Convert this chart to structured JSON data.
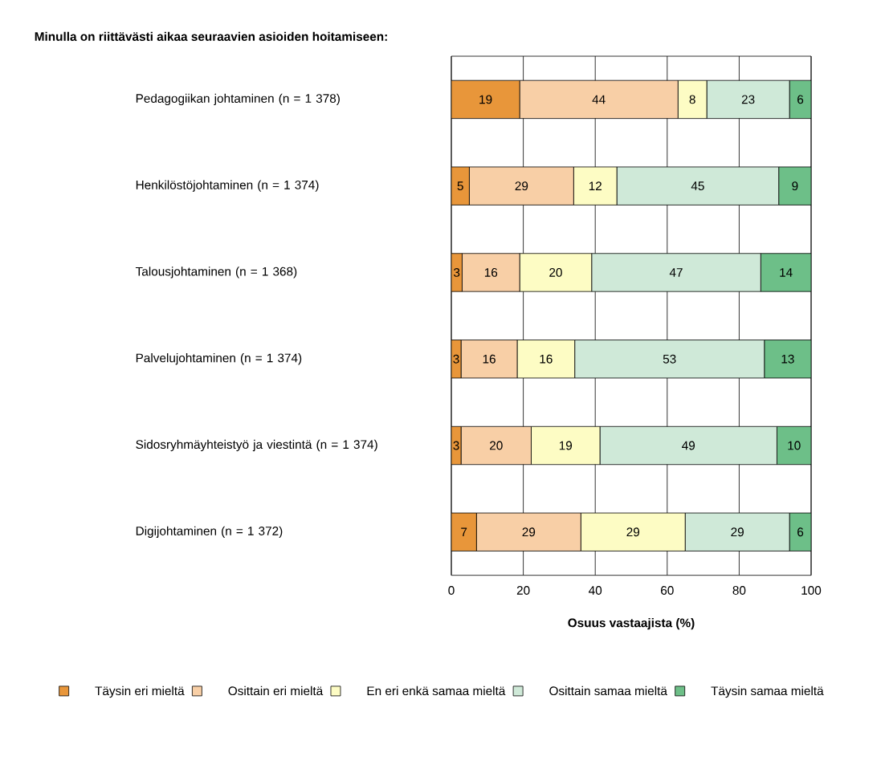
{
  "chart_data": {
    "type": "bar",
    "orientation": "horizontal",
    "stacked": true,
    "title": "Minulla on riittävästi aikaa seuraavien asioiden hoitamiseen:",
    "xlabel": "Osuus vastaajista (%)",
    "categories": [
      "Pedagogiikan johtaminen (n = 1 378)",
      "Henkilöstöjohtaminen (n = 1 374)",
      "Talousjohtaminen (n = 1 368)",
      "Palvelujohtaminen (n = 1 374)",
      "Sidosryhmäyhteistyö ja viestintä (n = 1 374)",
      "Digijohtaminen (n = 1 372)"
    ],
    "series": [
      {
        "name": "Täysin eri mieltä",
        "color": "#e8963a",
        "values": [
          19,
          5,
          3,
          2.7,
          2.7,
          7
        ],
        "value_labels": [
          "19",
          "5",
          "3",
          "3",
          "3",
          "7"
        ]
      },
      {
        "name": "Osittain eri mieltä",
        "color": "#f8cfa6",
        "values": [
          44,
          29,
          16,
          15.6,
          19.5,
          29
        ],
        "value_labels": [
          "44",
          "29",
          "16",
          "16",
          "20",
          "29"
        ]
      },
      {
        "name": "En eri enkä samaa mieltä",
        "color": "#fdfcc4",
        "values": [
          8,
          12,
          20,
          16,
          19.1,
          29
        ],
        "value_labels": [
          "8",
          "12",
          "20",
          "16",
          "19",
          "29"
        ]
      },
      {
        "name": "Osittain samaa mieltä",
        "color": "#cfe9d8",
        "values": [
          23,
          45,
          47,
          52.7,
          49.2,
          29
        ],
        "value_labels": [
          "23",
          "45",
          "47",
          "53",
          "49",
          "29"
        ]
      },
      {
        "name": "Täysin samaa mieltä",
        "color": "#6dbf88",
        "values": [
          6,
          9,
          14,
          13,
          9.5,
          6
        ],
        "value_labels": [
          "6",
          "9",
          "14",
          "13",
          "10",
          "6"
        ]
      }
    ],
    "xlim": [
      0,
      100
    ],
    "xticks": [
      0,
      20,
      40,
      60,
      80,
      100
    ],
    "grid": "x",
    "legend": "bottom"
  }
}
